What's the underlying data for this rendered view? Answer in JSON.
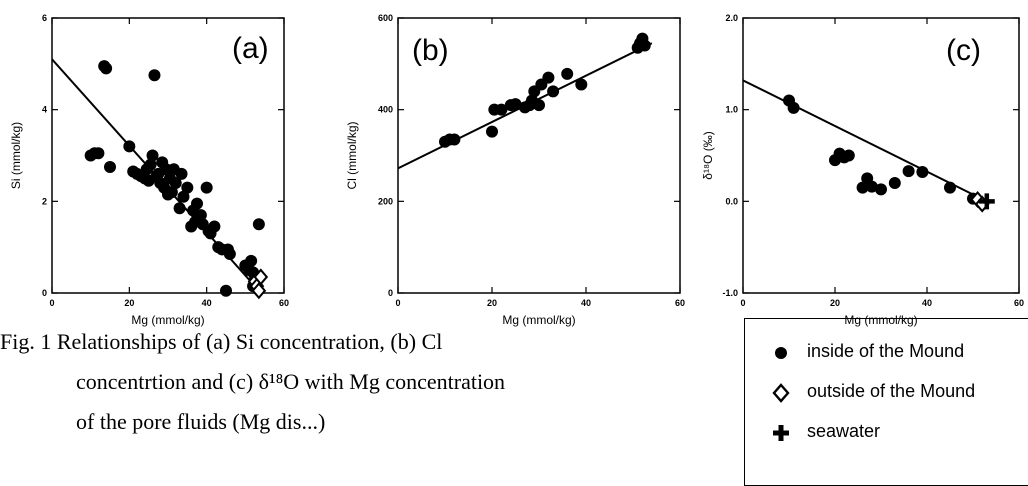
{
  "chart_data": [
    {
      "type": "scatter",
      "panel_label": "(a)",
      "xlabel": "Mg  (mmol/kg)",
      "ylabel": "Si  (mmol/kg)",
      "xlim": [
        0,
        60
      ],
      "ylim": [
        0,
        6
      ],
      "xticks": [
        "0",
        "20",
        "40",
        "60"
      ],
      "yticks": [
        "0",
        "2",
        "4",
        "6"
      ],
      "line": {
        "x": [
          0,
          53
        ],
        "y": [
          5.1,
          0.1
        ]
      },
      "series": [
        {
          "name": "inside of the Mound",
          "points": [
            [
              10,
              3.0
            ],
            [
              11,
              3.05
            ],
            [
              12,
              3.05
            ],
            [
              13.5,
              4.95
            ],
            [
              14,
              4.9
            ],
            [
              15,
              2.75
            ],
            [
              20,
              3.2
            ],
            [
              21,
              2.65
            ],
            [
              22,
              2.6
            ],
            [
              23,
              2.55
            ],
            [
              24,
              2.5
            ],
            [
              24.5,
              2.7
            ],
            [
              25,
              2.45
            ],
            [
              25.5,
              2.8
            ],
            [
              26,
              3.0
            ],
            [
              26.5,
              4.75
            ],
            [
              27,
              2.55
            ],
            [
              27.5,
              2.6
            ],
            [
              28,
              2.4
            ],
            [
              28.5,
              2.85
            ],
            [
              29,
              2.3
            ],
            [
              29.5,
              2.7
            ],
            [
              30,
              2.15
            ],
            [
              30.5,
              2.5
            ],
            [
              31,
              2.2
            ],
            [
              31.5,
              2.7
            ],
            [
              32,
              2.4
            ],
            [
              33,
              1.85
            ],
            [
              33.5,
              2.6
            ],
            [
              34,
              2.1
            ],
            [
              35,
              2.3
            ],
            [
              36,
              1.45
            ],
            [
              36.5,
              1.8
            ],
            [
              37,
              1.55
            ],
            [
              37.5,
              1.95
            ],
            [
              38,
              1.65
            ],
            [
              38.5,
              1.7
            ],
            [
              39,
              1.5
            ],
            [
              40,
              2.3
            ],
            [
              40.5,
              1.35
            ],
            [
              41,
              1.3
            ],
            [
              42,
              1.45
            ],
            [
              43,
              1.0
            ],
            [
              44,
              0.95
            ],
            [
              45,
              0.05
            ],
            [
              45.5,
              0.95
            ],
            [
              46,
              0.85
            ],
            [
              50,
              0.6
            ],
            [
              51,
              0.5
            ],
            [
              51.5,
              0.7
            ],
            [
              52,
              0.45
            ],
            [
              52.5,
              0.3
            ],
            [
              53,
              0.35
            ],
            [
              53.5,
              1.5
            ],
            [
              52,
              0.15
            ]
          ]
        },
        {
          "name": "outside of the Mound",
          "points": [
            [
              52.5,
              0.25
            ],
            [
              53,
              0.15
            ],
            [
              54,
              0.35
            ],
            [
              53.5,
              0.05
            ]
          ]
        }
      ]
    },
    {
      "type": "scatter",
      "panel_label": "(b)",
      "xlabel": "Mg  (mmol/kg)",
      "ylabel": "Cl  (mmol/kg)",
      "xlim": [
        0,
        60
      ],
      "ylim": [
        0,
        600
      ],
      "xticks": [
        "0",
        "20",
        "40",
        "60"
      ],
      "yticks": [
        "0",
        "200",
        "400",
        "600"
      ],
      "line": {
        "x": [
          0,
          54
        ],
        "y": [
          272,
          545
        ]
      },
      "series": [
        {
          "name": "inside of the Mound",
          "points": [
            [
              10,
              330
            ],
            [
              11,
              335
            ],
            [
              12,
              335
            ],
            [
              20,
              352
            ],
            [
              20.5,
              400
            ],
            [
              22,
              400
            ],
            [
              24,
              410
            ],
            [
              25,
              412
            ],
            [
              27,
              405
            ],
            [
              28,
              410
            ],
            [
              28.5,
              420
            ],
            [
              29,
              440
            ],
            [
              30,
              410
            ],
            [
              30.5,
              455
            ],
            [
              32,
              470
            ],
            [
              33,
              440
            ],
            [
              36,
              478
            ],
            [
              39,
              455
            ],
            [
              51,
              535
            ],
            [
              51.5,
              545
            ],
            [
              52,
              555
            ],
            [
              52.5,
              540
            ]
          ]
        }
      ]
    },
    {
      "type": "scatter",
      "panel_label": "(c)",
      "xlabel": "Mg  (mmol/kg)",
      "ylabel": "δ¹⁸O  (‰)",
      "xlim": [
        0,
        60
      ],
      "ylim": [
        -1.0,
        2.0
      ],
      "xticks": [
        "0",
        "20",
        "40",
        "60"
      ],
      "yticks": [
        "-1.0",
        "0.0",
        "1.0",
        "2.0"
      ],
      "line": {
        "x": [
          0,
          53
        ],
        "y": [
          1.32,
          0.0
        ]
      },
      "series": [
        {
          "name": "inside of the Mound",
          "points": [
            [
              10,
              1.1
            ],
            [
              11,
              1.02
            ],
            [
              20,
              0.45
            ],
            [
              21,
              0.52
            ],
            [
              22,
              0.48
            ],
            [
              23,
              0.5
            ],
            [
              26,
              0.15
            ],
            [
              27,
              0.25
            ],
            [
              28,
              0.16
            ],
            [
              30,
              0.13
            ],
            [
              33,
              0.2
            ],
            [
              36,
              0.33
            ],
            [
              39,
              0.32
            ],
            [
              45,
              0.15
            ],
            [
              50,
              0.03
            ]
          ]
        },
        {
          "name": "outside of the Mound",
          "points": [
            [
              51,
              0.02
            ],
            [
              52,
              -0.03
            ]
          ]
        },
        {
          "name": "seawater",
          "points": [
            [
              53,
              0.0
            ]
          ]
        }
      ]
    }
  ],
  "caption": {
    "line1": "Fig. 1   Relationships of (a) Si concentration, (b) Cl",
    "line2": "concentrtion and (c) δ¹⁸O with Mg concentration",
    "line3": "of the pore fluids (Mg dis...)"
  },
  "legend": {
    "items": [
      {
        "symbol": "filled-circle",
        "label": "inside of the Mound"
      },
      {
        "symbol": "open-diamond",
        "label": "outside of the Mound"
      },
      {
        "symbol": "plus-cross",
        "label": "seawater"
      }
    ]
  }
}
